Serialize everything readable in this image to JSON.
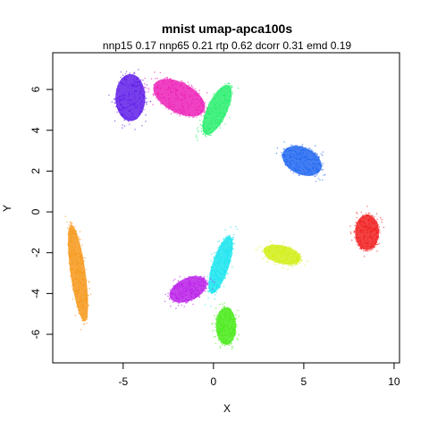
{
  "chart_data": {
    "type": "scatter",
    "title": "mnist umap-apca100s",
    "subtitle": "nnp15 0.17 nnp65 0.21 rtp 0.62 dcorr 0.31 emd 0.19",
    "xlabel": "X",
    "ylabel": "Y",
    "xlim": [
      -8.9,
      10.3
    ],
    "ylim": [
      -7.4,
      7.8
    ],
    "xticks": [
      -5,
      0,
      5,
      10
    ],
    "yticks": [
      -6,
      -4,
      -2,
      0,
      2,
      4,
      6
    ],
    "grid": false,
    "legend": "none",
    "clusters": [
      {
        "color": "#5a16e8",
        "cx": -4.6,
        "cy": 5.6,
        "rx": 0.9,
        "ry": 1.25,
        "angle": 0
      },
      {
        "color": "#ec18b4",
        "cx": -1.9,
        "cy": 5.6,
        "rx": 1.7,
        "ry": 0.8,
        "angle": 28
      },
      {
        "color": "#22ee6a",
        "cx": 0.2,
        "cy": 5.0,
        "rx": 0.6,
        "ry": 1.45,
        "angle": 25
      },
      {
        "color": "#1a62f0",
        "cx": 4.9,
        "cy": 2.5,
        "rx": 1.25,
        "ry": 0.72,
        "angle": 25
      },
      {
        "color": "#f01818",
        "cx": 8.5,
        "cy": -1.0,
        "rx": 0.72,
        "ry": 0.95,
        "angle": 0
      },
      {
        "color": "#d2ee12",
        "cx": 3.8,
        "cy": -2.1,
        "rx": 1.15,
        "ry": 0.48,
        "angle": 15
      },
      {
        "color": "#12e4ee",
        "cx": 0.4,
        "cy": -2.6,
        "rx": 0.5,
        "ry": 1.6,
        "angle": 18
      },
      {
        "color": "#b81ae8",
        "cx": -1.4,
        "cy": -3.8,
        "rx": 1.2,
        "ry": 0.6,
        "angle": -25
      },
      {
        "color": "#44ea12",
        "cx": 0.7,
        "cy": -5.6,
        "rx": 0.6,
        "ry": 1.0,
        "angle": 0
      },
      {
        "color": "#f59410",
        "cx": -7.5,
        "cy": -3.0,
        "rx": 0.45,
        "ry": 2.6,
        "angle": -8
      }
    ]
  }
}
